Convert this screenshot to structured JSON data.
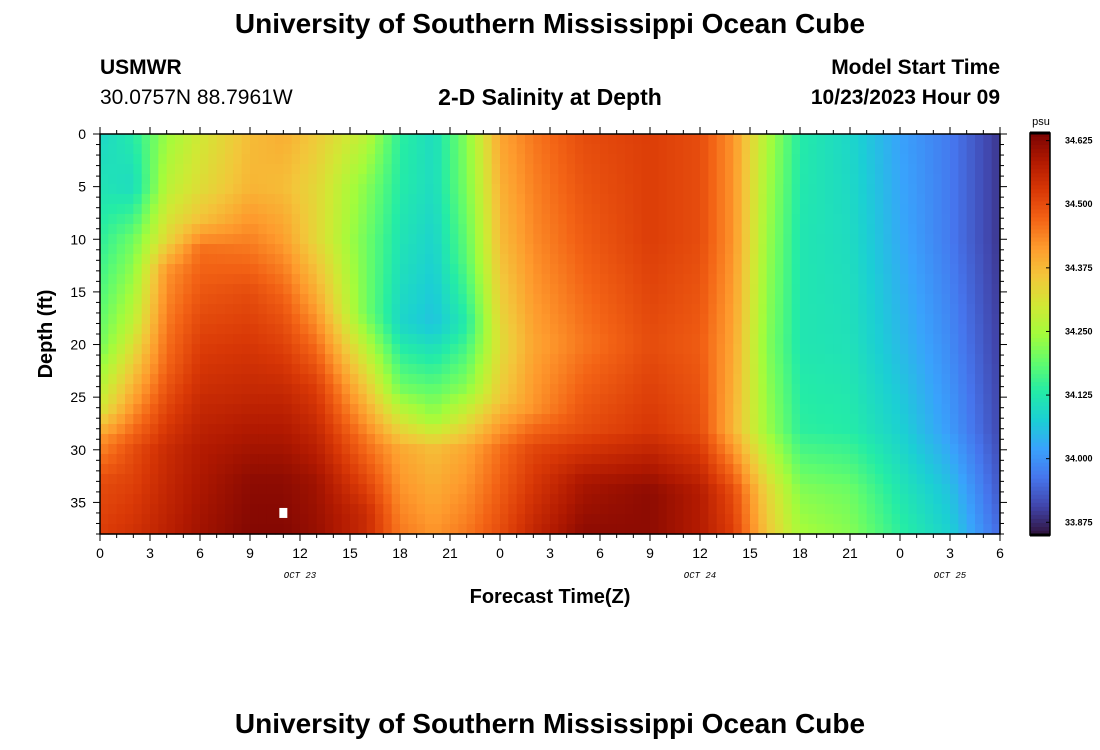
{
  "header": {
    "title": "University of Southern Mississippi Ocean Cube",
    "station": "USMWR",
    "coords": "30.0757N  88.7961W",
    "subtitle": "2-D Salinity at Depth",
    "model_label": "Model Start Time",
    "model_time": "10/23/2023 Hour 09"
  },
  "footer": {
    "title": "University of Southern Mississippi Ocean Cube"
  },
  "chart_data": {
    "type": "heatmap",
    "title": "2-D Salinity at Depth",
    "xlabel": "Forecast Time(Z)",
    "ylabel": "Depth (ft)",
    "x_range_hours": [
      0,
      54
    ],
    "y_range_ft": [
      0,
      38
    ],
    "y_inverted": true,
    "x_ticks": [
      {
        "h": 0,
        "label": "0"
      },
      {
        "h": 3,
        "label": "3"
      },
      {
        "h": 6,
        "label": "6"
      },
      {
        "h": 9,
        "label": "9"
      },
      {
        "h": 12,
        "label": "12"
      },
      {
        "h": 15,
        "label": "15"
      },
      {
        "h": 18,
        "label": "18"
      },
      {
        "h": 21,
        "label": "21"
      },
      {
        "h": 24,
        "label": "0"
      },
      {
        "h": 27,
        "label": "3"
      },
      {
        "h": 30,
        "label": "6"
      },
      {
        "h": 33,
        "label": "9"
      },
      {
        "h": 36,
        "label": "12"
      },
      {
        "h": 39,
        "label": "15"
      },
      {
        "h": 42,
        "label": "18"
      },
      {
        "h": 45,
        "label": "21"
      },
      {
        "h": 48,
        "label": "0"
      },
      {
        "h": 51,
        "label": "3"
      },
      {
        "h": 54,
        "label": "6"
      }
    ],
    "date_labels": [
      {
        "h": 12,
        "label": "OCT 23"
      },
      {
        "h": 36,
        "label": "OCT 24"
      },
      {
        "h": 51,
        "label": "OCT 25"
      }
    ],
    "y_ticks": [
      0,
      5,
      10,
      15,
      20,
      25,
      30,
      35
    ],
    "colorbar": {
      "unit": "psu",
      "min": 33.85,
      "max": 34.64,
      "ticks": [
        "34.625",
        "34.500",
        "34.375",
        "34.250",
        "34.125",
        "34.000",
        "33.875"
      ],
      "colors": [
        "#30123b",
        "#4145ab",
        "#4675ed",
        "#39a2fc",
        "#1bcfd4",
        "#24eca6",
        "#61fc6c",
        "#a4fc3b",
        "#d1e834",
        "#f3c63a",
        "#fe9b2d",
        "#f36315",
        "#d93806",
        "#b11901",
        "#7a0402"
      ]
    },
    "profiles": [
      {
        "h": 0,
        "values": [
          [
            0,
            34.09
          ],
          [
            10,
            34.14
          ],
          [
            20,
            34.2
          ],
          [
            26,
            34.3
          ],
          [
            29,
            34.42
          ],
          [
            33,
            34.5
          ],
          [
            38,
            34.52
          ]
        ]
      },
      {
        "h": 2,
        "values": [
          [
            0,
            34.13
          ],
          [
            5,
            34.1
          ],
          [
            10,
            34.2
          ],
          [
            18,
            34.28
          ],
          [
            25,
            34.4
          ],
          [
            30,
            34.5
          ],
          [
            38,
            34.54
          ]
        ]
      },
      {
        "h": 4,
        "values": [
          [
            0,
            34.24
          ],
          [
            5,
            34.27
          ],
          [
            10,
            34.33
          ],
          [
            13,
            34.42
          ],
          [
            22,
            34.47
          ],
          [
            30,
            34.55
          ],
          [
            38,
            34.57
          ]
        ]
      },
      {
        "h": 6,
        "values": [
          [
            0,
            34.3
          ],
          [
            5,
            34.32
          ],
          [
            8,
            34.36
          ],
          [
            11,
            34.46
          ],
          [
            20,
            34.52
          ],
          [
            30,
            34.58
          ],
          [
            38,
            34.6
          ]
        ]
      },
      {
        "h": 9,
        "values": [
          [
            0,
            34.37
          ],
          [
            5,
            34.38
          ],
          [
            10,
            34.44
          ],
          [
            15,
            34.5
          ],
          [
            25,
            34.56
          ],
          [
            33,
            34.62
          ],
          [
            38,
            34.63
          ]
        ]
      },
      {
        "h": 11,
        "values": [
          [
            0,
            34.39
          ],
          [
            5,
            34.37
          ],
          [
            10,
            34.41
          ],
          [
            16,
            34.48
          ],
          [
            25,
            34.56
          ],
          [
            33,
            34.62
          ],
          [
            38,
            34.63
          ]
        ]
      },
      {
        "h": 13,
        "values": [
          [
            0,
            34.35
          ],
          [
            5,
            34.33
          ],
          [
            10,
            34.33
          ],
          [
            16,
            34.4
          ],
          [
            24,
            34.52
          ],
          [
            33,
            34.6
          ],
          [
            38,
            34.61
          ]
        ]
      },
      {
        "h": 16,
        "values": [
          [
            0,
            34.27
          ],
          [
            5,
            34.22
          ],
          [
            10,
            34.2
          ],
          [
            17,
            34.2
          ],
          [
            23,
            34.33
          ],
          [
            29,
            34.45
          ],
          [
            36,
            34.55
          ],
          [
            38,
            34.55
          ]
        ]
      },
      {
        "h": 18,
        "values": [
          [
            0,
            34.14
          ],
          [
            5,
            34.13
          ],
          [
            12,
            34.11
          ],
          [
            18,
            34.09
          ],
          [
            24,
            34.2
          ],
          [
            30,
            34.4
          ],
          [
            38,
            34.45
          ]
        ]
      },
      {
        "h": 20,
        "values": [
          [
            0,
            34.1
          ],
          [
            5,
            34.1
          ],
          [
            12,
            34.08
          ],
          [
            18,
            34.06
          ],
          [
            23,
            34.16
          ],
          [
            27,
            34.24
          ],
          [
            30,
            34.37
          ],
          [
            38,
            34.42
          ]
        ]
      },
      {
        "h": 22,
        "values": [
          [
            0,
            34.22
          ],
          [
            5,
            34.21
          ],
          [
            12,
            34.18
          ],
          [
            18,
            34.13
          ],
          [
            24,
            34.22
          ],
          [
            30,
            34.4
          ],
          [
            38,
            34.45
          ]
        ]
      },
      {
        "h": 24,
        "values": [
          [
            0,
            34.4
          ],
          [
            10,
            34.37
          ],
          [
            20,
            34.32
          ],
          [
            25,
            34.35
          ],
          [
            30,
            34.46
          ],
          [
            38,
            34.5
          ]
        ]
      },
      {
        "h": 26,
        "values": [
          [
            0,
            34.45
          ],
          [
            10,
            34.43
          ],
          [
            20,
            34.4
          ],
          [
            26,
            34.42
          ],
          [
            30,
            34.51
          ],
          [
            38,
            34.56
          ]
        ]
      },
      {
        "h": 29,
        "values": [
          [
            0,
            34.5
          ],
          [
            10,
            34.48
          ],
          [
            20,
            34.45
          ],
          [
            28,
            34.5
          ],
          [
            33,
            34.59
          ],
          [
            38,
            34.62
          ]
        ]
      },
      {
        "h": 33,
        "values": [
          [
            0,
            34.52
          ],
          [
            10,
            34.52
          ],
          [
            20,
            34.5
          ],
          [
            28,
            34.53
          ],
          [
            34,
            34.62
          ],
          [
            38,
            34.62
          ]
        ]
      },
      {
        "h": 36,
        "values": [
          [
            0,
            34.5
          ],
          [
            10,
            34.5
          ],
          [
            20,
            34.48
          ],
          [
            28,
            34.5
          ],
          [
            34,
            34.58
          ],
          [
            38,
            34.58
          ]
        ]
      },
      {
        "h": 38,
        "values": [
          [
            0,
            34.42
          ],
          [
            10,
            34.42
          ],
          [
            20,
            34.4
          ],
          [
            28,
            34.38
          ],
          [
            34,
            34.5
          ],
          [
            38,
            34.52
          ]
        ]
      },
      {
        "h": 40,
        "values": [
          [
            0,
            34.26
          ],
          [
            10,
            34.24
          ],
          [
            20,
            34.22
          ],
          [
            28,
            34.24
          ],
          [
            34,
            34.34
          ],
          [
            38,
            34.36
          ]
        ]
      },
      {
        "h": 42,
        "values": [
          [
            0,
            34.13
          ],
          [
            10,
            34.12
          ],
          [
            20,
            34.12
          ],
          [
            28,
            34.14
          ],
          [
            34,
            34.22
          ],
          [
            38,
            34.25
          ]
        ]
      },
      {
        "h": 45,
        "values": [
          [
            0,
            34.09
          ],
          [
            10,
            34.1
          ],
          [
            20,
            34.11
          ],
          [
            28,
            34.13
          ],
          [
            34,
            34.2
          ],
          [
            38,
            34.22
          ]
        ]
      },
      {
        "h": 48,
        "values": [
          [
            0,
            34.02
          ],
          [
            10,
            34.03
          ],
          [
            20,
            34.05
          ],
          [
            28,
            34.08
          ],
          [
            34,
            34.12
          ],
          [
            38,
            34.14
          ]
        ]
      },
      {
        "h": 51,
        "values": [
          [
            0,
            33.97
          ],
          [
            10,
            33.97
          ],
          [
            20,
            33.99
          ],
          [
            28,
            34.01
          ],
          [
            34,
            34.06
          ],
          [
            38,
            34.08
          ]
        ]
      },
      {
        "h": 54,
        "values": [
          [
            0,
            33.89
          ],
          [
            10,
            33.89
          ],
          [
            20,
            33.9
          ],
          [
            28,
            33.91
          ],
          [
            34,
            33.93
          ],
          [
            38,
            33.95
          ]
        ]
      }
    ],
    "marker": {
      "h": 11,
      "depth": 36
    }
  }
}
